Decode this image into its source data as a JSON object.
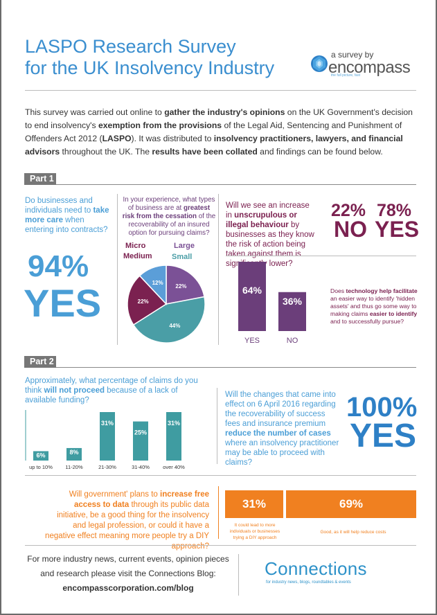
{
  "header": {
    "title_line1": "LASPO Research Survey",
    "title_line2": "for the UK Insolvency Industry",
    "byline": "a survey by",
    "logo_word": "encompass",
    "logo_tagline": "the full picture, fast"
  },
  "intro": {
    "t1": "This survey was carried out online to ",
    "b1": "gather the industry's opinions",
    "t2": " on the UK Government's decision to end insolvency's ",
    "b2": "exemption from the provisions",
    "t3": " of the Legal Aid, Sentencing and Punishment of Offenders Act 2012 (",
    "b3": "LASPO",
    "t4": "). It was distributed to ",
    "b4": "insolvency practitioners, lawyers, and financial advisors",
    "t5": " throughout the UK. The ",
    "b5": "results have been collated",
    "t6": " and findings can be found below."
  },
  "part1": {
    "label": "Part 1",
    "q1": {
      "t1": "Do businesses and individuals need to ",
      "b1": "take more care",
      "t2": " when entering into contracts?",
      "answer_pct": "94%",
      "answer_word": "YES"
    },
    "q2": {
      "t1": "In your experience, what types of business are at ",
      "b1": "greatest risk from the cessation",
      "t2": " of the recoverability of an insured option for pursuing claims?"
    },
    "q3": {
      "t1": "Will we see an increase in ",
      "b1": "unscrupulous or illegal behaviour",
      "t2": " by businesses as they know the risk of action being taken against them is significantly lower?",
      "no_pct": "22%",
      "no_word": "NO",
      "yes_pct": "78%",
      "yes_word": "YES"
    },
    "q4": {
      "t1": "Does ",
      "b1": "technology help facilitate",
      "t2": " an easier way to identify 'hidden assets' and thus go some way to making claims ",
      "b2": "easier to identify",
      "t3": " and to successfully pursue?"
    }
  },
  "part2": {
    "label": "Part 2",
    "q5": {
      "t1": "Approximately, what percentage of claims do you think ",
      "b1": "will not proceed",
      "t2": " because of a lack of available funding?"
    },
    "q6": {
      "t1": "Will the changes that came into effect on 6 April 2016 regarding the recoverability of success fees and insurance premium ",
      "b1": "reduce the number of cases",
      "t2": " where an insolvency practitioner may be able to proceed with claims?",
      "answer_pct": "100%",
      "answer_word": "YES"
    },
    "q7": {
      "t1": "Will government' plans to ",
      "b1": "increase free access to data",
      "t2": " through its public data initiative, be a good thing for the insolvency and legal profession, or could it have a negative effect meaning more people try a DIY approach?",
      "left_value": "31%",
      "right_value": "69%",
      "left_note": "It could lead to more individuals or businesses trying a DIY approach",
      "right_note": "Good, as it will help reduce costs"
    }
  },
  "footer": {
    "text": "For more industry news, current events, opinion pieces and research please visit the Connections Blog:",
    "url": "encompasscorporation.com/blog",
    "brand": "Connections",
    "brand_tag": "for industry news, blogs, roundtables & events"
  },
  "chart_data": [
    {
      "type": "pie",
      "title": "",
      "categories": [
        "Large",
        "Small",
        "Medium",
        "Micro"
      ],
      "values": [
        22,
        44,
        22,
        12
      ],
      "value_labels": [
        "22%",
        "44%",
        "22%",
        "12%"
      ],
      "colors": [
        "#7b5196",
        "#4a9ea6",
        "#7b2150",
        "#5b9ed8"
      ],
      "legend": "around"
    },
    {
      "type": "bar",
      "title": "",
      "categories": [
        "YES",
        "NO"
      ],
      "values": [
        64,
        36
      ],
      "value_labels": [
        "64%",
        "36%"
      ],
      "colors": [
        "#6b3e7a",
        "#6b3e7a"
      ],
      "ylim": [
        0,
        64
      ]
    },
    {
      "type": "bar",
      "title": "",
      "categories": [
        "up to 10%",
        "11-20%",
        "21-30%",
        "31-40%",
        "over 40%"
      ],
      "values": [
        6,
        8,
        31,
        25,
        31
      ],
      "value_labels": [
        "6%",
        "8%",
        "31%",
        "25%",
        "31%"
      ],
      "colors": [
        "#3f9ca1"
      ],
      "ylim": [
        0,
        31
      ]
    },
    {
      "type": "bar",
      "title": "",
      "categories": [
        "It could lead to more individuals or businesses trying a DIY approach",
        "Good, as it will help reduce costs"
      ],
      "values": [
        31,
        69
      ],
      "value_labels": [
        "31%",
        "69%"
      ],
      "colors": [
        "#f08020"
      ]
    }
  ]
}
